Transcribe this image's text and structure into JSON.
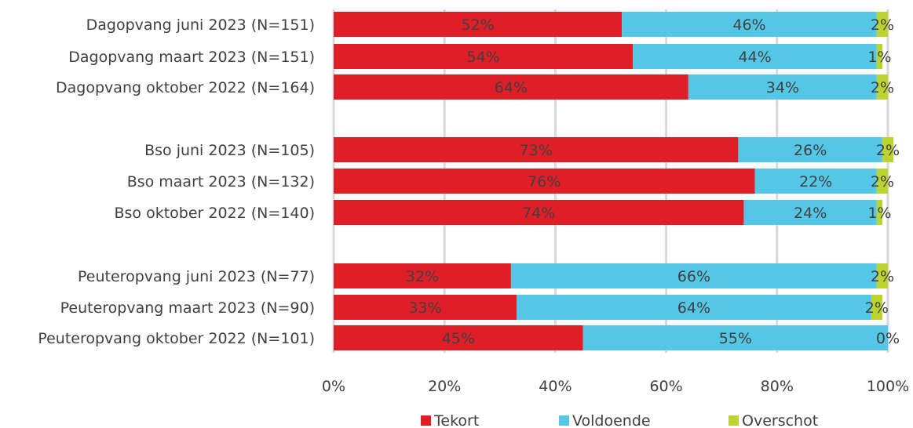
{
  "chart_data": {
    "type": "bar",
    "orientation": "horizontal",
    "stacked": "percent",
    "categories": [
      "Dagopvang juni 2023 (N=151)",
      "Dagopvang maart 2023 (N=151)",
      "Dagopvang oktober 2022 (N=164)",
      "Bso juni 2023 (N=105)",
      "Bso maart 2023 (N=132)",
      "Bso oktober 2022 (N=140)",
      "Peuteropvang juni 2023 (N=77)",
      "Peuteropvang maart 2023 (N=90)",
      "Peuteropvang oktober 2022 (N=101)"
    ],
    "series": [
      {
        "name": "Tekort",
        "color": "#e01e27",
        "values": [
          52,
          54,
          64,
          73,
          76,
          74,
          32,
          33,
          45
        ]
      },
      {
        "name": "Voldoende",
        "color": "#55c7e6",
        "values": [
          46,
          44,
          34,
          26,
          22,
          24,
          66,
          64,
          55
        ]
      },
      {
        "name": "Overschot",
        "color": "#bcd330",
        "values": [
          2,
          1,
          2,
          2,
          2,
          1,
          2,
          2,
          0
        ]
      }
    ],
    "xlim": [
      0,
      100
    ],
    "xticks": [
      "0%",
      "20%",
      "40%",
      "60%",
      "80%",
      "100%"
    ],
    "grid": true,
    "legend": "bottom",
    "title": "",
    "xlabel": "",
    "ylabel": ""
  }
}
